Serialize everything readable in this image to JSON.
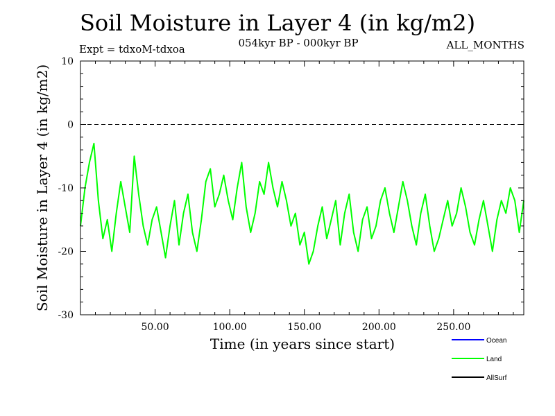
{
  "chart_data": {
    "type": "line",
    "title": "Soil Moisture in Layer 4 (in kg/m2)",
    "subtitle": "054kyr BP - 000kyr BP",
    "experiment": "Expt = tdxoM-tdxoa",
    "period": "ALL_MONTHS",
    "xlabel": "Time (in years since start)",
    "ylabel": "Soil Moisture in Layer 4 (in kg/m2)",
    "xlim": [
      0,
      297
    ],
    "ylim": [
      -30,
      10
    ],
    "x_ticks": [
      "50.00",
      "100.00",
      "150.00",
      "200.00",
      "250.00"
    ],
    "y_ticks": [
      "10",
      "0",
      "-10",
      "-20",
      "-30"
    ],
    "reference_line": 0,
    "legend": [
      {
        "label": "Ocean",
        "color": "#0000ff"
      },
      {
        "label": "Land",
        "color": "#00ff00"
      },
      {
        "label": "AllSurf",
        "color": "#000000"
      }
    ],
    "series": [
      {
        "name": "Land",
        "color": "#00ff00",
        "x": [
          0,
          3,
          6,
          9,
          12,
          15,
          18,
          21,
          24,
          27,
          30,
          33,
          36,
          39,
          42,
          45,
          48,
          51,
          54,
          57,
          60,
          63,
          66,
          69,
          72,
          75,
          78,
          81,
          84,
          87,
          90,
          93,
          96,
          99,
          102,
          105,
          108,
          111,
          114,
          117,
          120,
          123,
          126,
          129,
          132,
          135,
          138,
          141,
          144,
          147,
          150,
          153,
          156,
          159,
          162,
          165,
          168,
          171,
          174,
          177,
          180,
          183,
          186,
          189,
          192,
          195,
          198,
          201,
          204,
          207,
          210,
          213,
          216,
          219,
          222,
          225,
          228,
          231,
          234,
          237,
          240,
          243,
          246,
          249,
          252,
          255,
          258,
          261,
          264,
          267,
          270,
          273,
          276,
          279,
          282,
          285,
          288,
          291,
          294,
          297
        ],
        "values": [
          -16,
          -10,
          -6,
          -3,
          -12,
          -18,
          -15,
          -20,
          -14,
          -9,
          -13,
          -17,
          -5,
          -11,
          -16,
          -19,
          -15,
          -13,
          -17,
          -21,
          -16,
          -12,
          -19,
          -14,
          -11,
          -17,
          -20,
          -15,
          -9,
          -7,
          -13,
          -11,
          -8,
          -12,
          -15,
          -10,
          -6,
          -13,
          -17,
          -14,
          -9,
          -11,
          -6,
          -10,
          -13,
          -9,
          -12,
          -16,
          -14,
          -19,
          -17,
          -22,
          -20,
          -16,
          -13,
          -18,
          -15,
          -12,
          -19,
          -14,
          -11,
          -17,
          -20,
          -15,
          -13,
          -18,
          -16,
          -12,
          -10,
          -14,
          -17,
          -13,
          -9,
          -12,
          -16,
          -19,
          -14,
          -11,
          -16,
          -20,
          -18,
          -15,
          -12,
          -16,
          -14,
          -10,
          -13,
          -17,
          -19,
          -15,
          -12,
          -16,
          -20,
          -15,
          -12,
          -14,
          -10,
          -12,
          -17,
          -12
        ]
      }
    ]
  }
}
